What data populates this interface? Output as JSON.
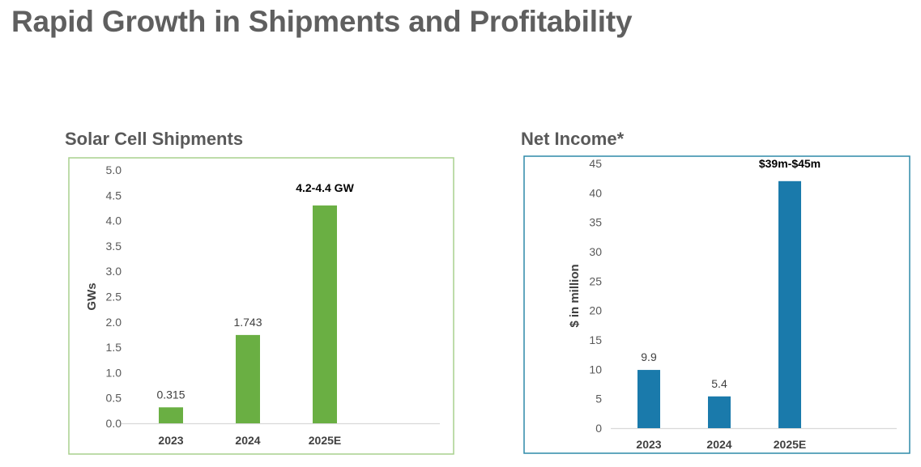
{
  "page": {
    "title": "Rapid Growth in Shipments and Profitability"
  },
  "chart_data": [
    {
      "type": "bar",
      "title": "Solar Cell Shipments",
      "xlabel": "",
      "ylabel": "GWs",
      "ylim": [
        0,
        5
      ],
      "yticks": [
        "0.0",
        "0.5",
        "1.0",
        "1.5",
        "2.0",
        "2.5",
        "3.0",
        "3.5",
        "4.0",
        "4.5",
        "5.0"
      ],
      "categories": [
        "2023",
        "2024",
        "2025E"
      ],
      "values": [
        0.315,
        1.743,
        4.3
      ],
      "data_labels": [
        "0.315",
        "1.743",
        "4.2-4.4 GW"
      ],
      "data_label_bold": [
        false,
        false,
        true
      ],
      "color": "#6aaf43",
      "frame_color": "#a9d18e"
    },
    {
      "type": "bar",
      "title": "Net Income*",
      "xlabel": "",
      "ylabel": "$ in million",
      "ylim": [
        0,
        45
      ],
      "yticks": [
        "0",
        "5",
        "10",
        "15",
        "20",
        "25",
        "30",
        "35",
        "40",
        "45"
      ],
      "categories": [
        "2023",
        "2024",
        "2025E"
      ],
      "values": [
        9.9,
        5.4,
        42
      ],
      "data_labels": [
        "9.9",
        "5.4",
        "$39m-$45m"
      ],
      "data_label_bold": [
        false,
        false,
        true
      ],
      "color": "#1a7aab",
      "frame_color": "#2e8aa8"
    }
  ]
}
